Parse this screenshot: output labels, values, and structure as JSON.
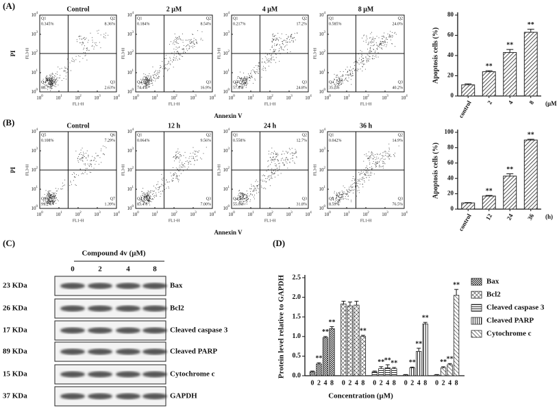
{
  "flow_cytometry": [
    {
      "panel": "(A)",
      "x_label": "Annexin V",
      "y_label": "PI",
      "x_axis": "FL1-H",
      "y_axis": "FL3-H",
      "log_ticks": {
        "base": "10",
        "exponents": [
          "0",
          "1",
          "2",
          "3",
          "4"
        ]
      },
      "plots": [
        {
          "title": "Control",
          "quadrants": [
            {
              "name": "Q1",
              "value": "0.345%"
            },
            {
              "name": "Q2",
              "value": "8.36%"
            },
            {
              "name": "Q4",
              "value": "88.7%"
            },
            {
              "name": "Q3",
              "value": "2.63%"
            }
          ]
        },
        {
          "title": "2 μM",
          "quadrants": [
            {
              "name": "Q1",
              "value": "0.184%"
            },
            {
              "name": "Q2",
              "value": "8.54%"
            },
            {
              "name": "Q4",
              "value": "74.4%"
            },
            {
              "name": "Q3",
              "value": "16.9%"
            }
          ]
        },
        {
          "title": "4 μM",
          "quadrants": [
            {
              "name": "Q1",
              "value": "0.217%"
            },
            {
              "name": "Q2",
              "value": "17.2%"
            },
            {
              "name": "Q4",
              "value": "57.8%"
            },
            {
              "name": "Q3",
              "value": "24.8%"
            }
          ]
        },
        {
          "title": "8 μM",
          "quadrants": [
            {
              "name": "Q1",
              "value": "0.585%"
            },
            {
              "name": "Q2",
              "value": "24.0%"
            },
            {
              "name": "Q4",
              "value": "35.2%"
            },
            {
              "name": "Q3",
              "value": "40.2%"
            }
          ]
        }
      ]
    },
    {
      "panel": "(B)",
      "x_label": "Annexin V",
      "y_label": "PI",
      "x_axis": "FL1-H",
      "y_axis": "FL3-H",
      "log_ticks": {
        "base": "10",
        "exponents": [
          "0",
          "1",
          "2",
          "3",
          "4"
        ]
      },
      "plots": [
        {
          "title": "Control",
          "quadrants": [
            {
              "name": "Q5",
              "value": "0.108%"
            },
            {
              "name": "Q6",
              "value": "7.29%"
            },
            {
              "name": "Q8",
              "value": "91.2%"
            },
            {
              "name": "Q7",
              "value": "1.39%"
            }
          ]
        },
        {
          "title": "12 h",
          "quadrants": [
            {
              "name": "Q1",
              "value": "0.064%"
            },
            {
              "name": "Q2",
              "value": "9.56%"
            },
            {
              "name": "Q4",
              "value": "83.4%"
            },
            {
              "name": "Q3",
              "value": "7.00%"
            }
          ]
        },
        {
          "title": "24 h",
          "quadrants": [
            {
              "name": "Q1",
              "value": "0.558%"
            },
            {
              "name": "Q2",
              "value": "12.7%"
            },
            {
              "name": "Q4",
              "value": "55.0%"
            },
            {
              "name": "Q3",
              "value": "31.8%"
            }
          ]
        },
        {
          "title": "36 h",
          "quadrants": [
            {
              "name": "Q1",
              "value": "0.042%"
            },
            {
              "name": "Q2",
              "value": "14.9%"
            },
            {
              "name": "Q4",
              "value": "8.59%"
            },
            {
              "name": "Q3",
              "value": "76.5%"
            }
          ]
        }
      ]
    }
  ],
  "western_blot": {
    "panel": "(C)",
    "title": "Compound 4v (μM)",
    "lanes": [
      "0",
      "2",
      "4",
      "8"
    ],
    "rows": [
      {
        "size": "23 KDa",
        "protein": "Bax"
      },
      {
        "size": "26 KDa",
        "protein": "Bcl2"
      },
      {
        "size": "17 KDa",
        "protein": "Cleaved caspase 3"
      },
      {
        "size": "89 KDa",
        "protein": "Cleaved PARP"
      },
      {
        "size": "15 KDa",
        "protein": "Cytochrome c"
      },
      {
        "size": "37 KDa",
        "protein": "GAPDH"
      }
    ]
  },
  "chart_data": [
    {
      "type": "bar",
      "ylabel": "Apoptosis cells (%)",
      "categories": [
        "control",
        "2",
        "4",
        "8"
      ],
      "unit": "(μM)",
      "values": [
        11,
        24,
        43,
        63
      ],
      "errors": [
        1,
        1,
        3,
        3
      ],
      "annotations": [
        null,
        "**",
        "**",
        "**"
      ],
      "color": "#222222",
      "ylim": [
        0,
        80
      ],
      "yticks": [
        0,
        20,
        40,
        60,
        80
      ]
    },
    {
      "type": "bar",
      "ylabel": "Apoptosis cells (%)",
      "categories": [
        "control",
        "12",
        "24",
        "36"
      ],
      "unit": "(h)",
      "values": [
        8,
        17,
        43,
        90
      ],
      "errors": [
        0.5,
        0.8,
        3,
        1
      ],
      "annotations": [
        null,
        "**",
        "**",
        "**"
      ],
      "color": "#222222",
      "ylim": [
        0,
        100
      ],
      "yticks": [
        0,
        20,
        40,
        60,
        80,
        100
      ]
    },
    {
      "type": "grouped_bar",
      "panel": "(D)",
      "xlabel": "Concentration (μM)",
      "ylabel": "Protein level relative to GAPDH",
      "categories": [
        "0",
        "2",
        "4",
        "8"
      ],
      "legend": "top-right",
      "color": "#222222",
      "series": [
        {
          "name": "Bax",
          "values": [
            0.1,
            0.3,
            0.97,
            1.2
          ],
          "errors": [
            0.02,
            0.03,
            0.03,
            0.05
          ],
          "annotations": [
            null,
            "**",
            "**",
            "**"
          ]
        },
        {
          "name": "Bcl2",
          "values": [
            1.83,
            1.78,
            1.8,
            1.0
          ],
          "errors": [
            0.07,
            0.1,
            0.1,
            0.03
          ],
          "annotations": [
            null,
            null,
            null,
            "**"
          ]
        },
        {
          "name": "Cleaved caspase 3",
          "values": [
            0.1,
            0.18,
            0.2,
            0.18
          ],
          "errors": [
            0.02,
            0.05,
            0.08,
            0.03
          ],
          "annotations": [
            null,
            "**",
            "**",
            "**"
          ]
        },
        {
          "name": "Cleaved PARP",
          "values": [
            0.02,
            0.2,
            0.62,
            1.32
          ],
          "errors": [
            0.01,
            0.02,
            0.08,
            0.04
          ],
          "annotations": [
            null,
            "**",
            "**",
            "**"
          ]
        },
        {
          "name": "Cytochrome c",
          "values": [
            0.02,
            0.2,
            0.28,
            2.05
          ],
          "errors": [
            0.01,
            0.03,
            0.03,
            0.15
          ],
          "annotations": [
            null,
            "**",
            "**",
            "**"
          ]
        }
      ],
      "ylim": [
        0,
        2.5
      ],
      "yticks": [
        {
          "value": 0,
          "label": "0.0"
        },
        0.5,
        {
          "value": 1,
          "label": "1.0"
        },
        1.5,
        {
          "value": 2,
          "label": "2.0"
        },
        2.5
      ]
    }
  ]
}
